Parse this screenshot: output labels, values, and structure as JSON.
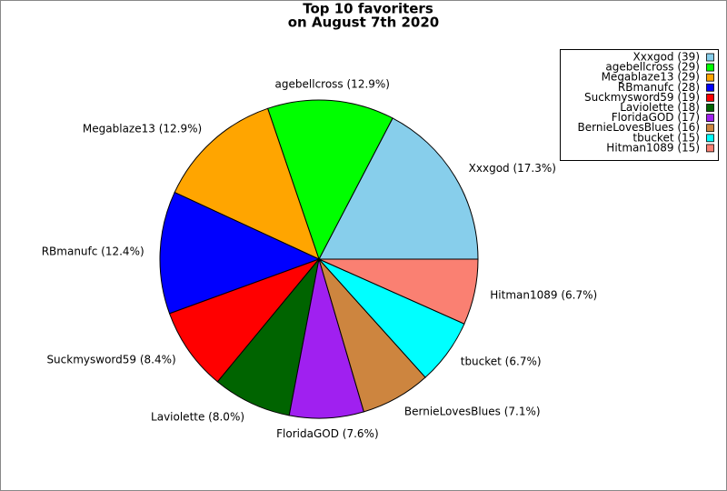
{
  "chart_data": {
    "type": "pie",
    "title": "Top 10 favoriters",
    "subtitle": "on August 7th 2020",
    "categories": [
      "Xxxgod (39)",
      "agebellcross (29)",
      "Megablaze13 (29)",
      "RBmanufc (28)",
      "Suckmysword59 (19)",
      "Laviolette (18)",
      "FloridaGOD (17)",
      "BernieLovesBlues (16)",
      "tbucket (15)",
      "Hitman1089 (15)"
    ],
    "values": [
      39,
      29,
      29,
      28,
      19,
      18,
      17,
      16,
      15,
      15
    ],
    "value_labels": [
      "Xxxgod (17.3%)",
      "agebellcross (12.9%)",
      "Megablaze13 (12.9%)",
      "RBmanufc (12.4%)",
      "Suckmysword59 (8.4%)",
      "Laviolette (8.0%)",
      "FloridaGOD (7.6%)",
      "BernieLovesBlues (7.1%)",
      "tbucket (6.7%)",
      "Hitman1089 (6.7%)"
    ],
    "colors": [
      "#87ceeb",
      "#00ff00",
      "#ffa500",
      "#0000ff",
      "#ff0000",
      "#006400",
      "#a020f0",
      "#cd853f",
      "#00ffff",
      "#fa8072"
    ],
    "legend": "upper right"
  }
}
